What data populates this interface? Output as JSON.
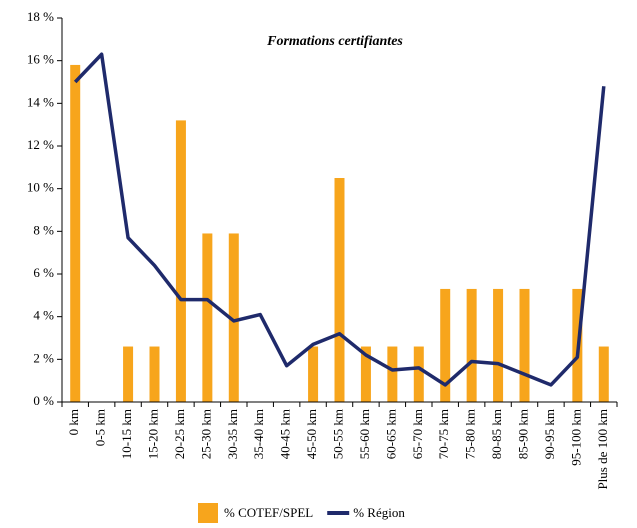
{
  "chart_data": {
    "type": "bar_line",
    "title": "Formations certifiantes",
    "categories": [
      "0 km",
      "0-5 km",
      "10-15 km",
      "15-20 km",
      "20-25 km",
      "25-30 km",
      "30-35 km",
      "35-40 km",
      "40-45 km",
      "45-50 km",
      "50-55 km",
      "55-60 km",
      "60-65 km",
      "65-70 km",
      "70-75 km",
      "75-80 km",
      "80-85 km",
      "85-90 km",
      "90-95 km",
      "95-100 km",
      "Plus de 100 km"
    ],
    "series": [
      {
        "name": "% COTEF/SPEL",
        "type": "bar",
        "color": "#f7a51c",
        "values": [
          15.8,
          0,
          2.6,
          2.6,
          13.2,
          7.9,
          7.9,
          0,
          0,
          2.6,
          10.5,
          2.6,
          2.6,
          2.6,
          5.3,
          5.3,
          5.3,
          5.3,
          0,
          5.3,
          2.6
        ]
      },
      {
        "name": "% Région",
        "type": "line",
        "color": "#1f2a6b",
        "values": [
          15.0,
          16.3,
          7.7,
          6.4,
          4.8,
          4.8,
          3.8,
          4.1,
          1.7,
          2.7,
          3.2,
          2.2,
          1.5,
          1.6,
          0.8,
          1.9,
          1.8,
          1.3,
          0.8,
          2.1,
          14.8
        ]
      }
    ],
    "ylim": [
      0,
      18
    ],
    "yticks": [
      {
        "value": 0,
        "label": "0 %"
      },
      {
        "value": 2,
        "label": "2 %"
      },
      {
        "value": 4,
        "label": "4 %"
      },
      {
        "value": 6,
        "label": "6 %"
      },
      {
        "value": 8,
        "label": "8 %"
      },
      {
        "value": 10,
        "label": "10 %"
      },
      {
        "value": 12,
        "label": "12 %"
      },
      {
        "value": 14,
        "label": "14 %"
      },
      {
        "value": 16,
        "label": "16 %"
      },
      {
        "value": 18,
        "label": "18 %"
      }
    ],
    "grid": false,
    "legend": "bottom"
  }
}
